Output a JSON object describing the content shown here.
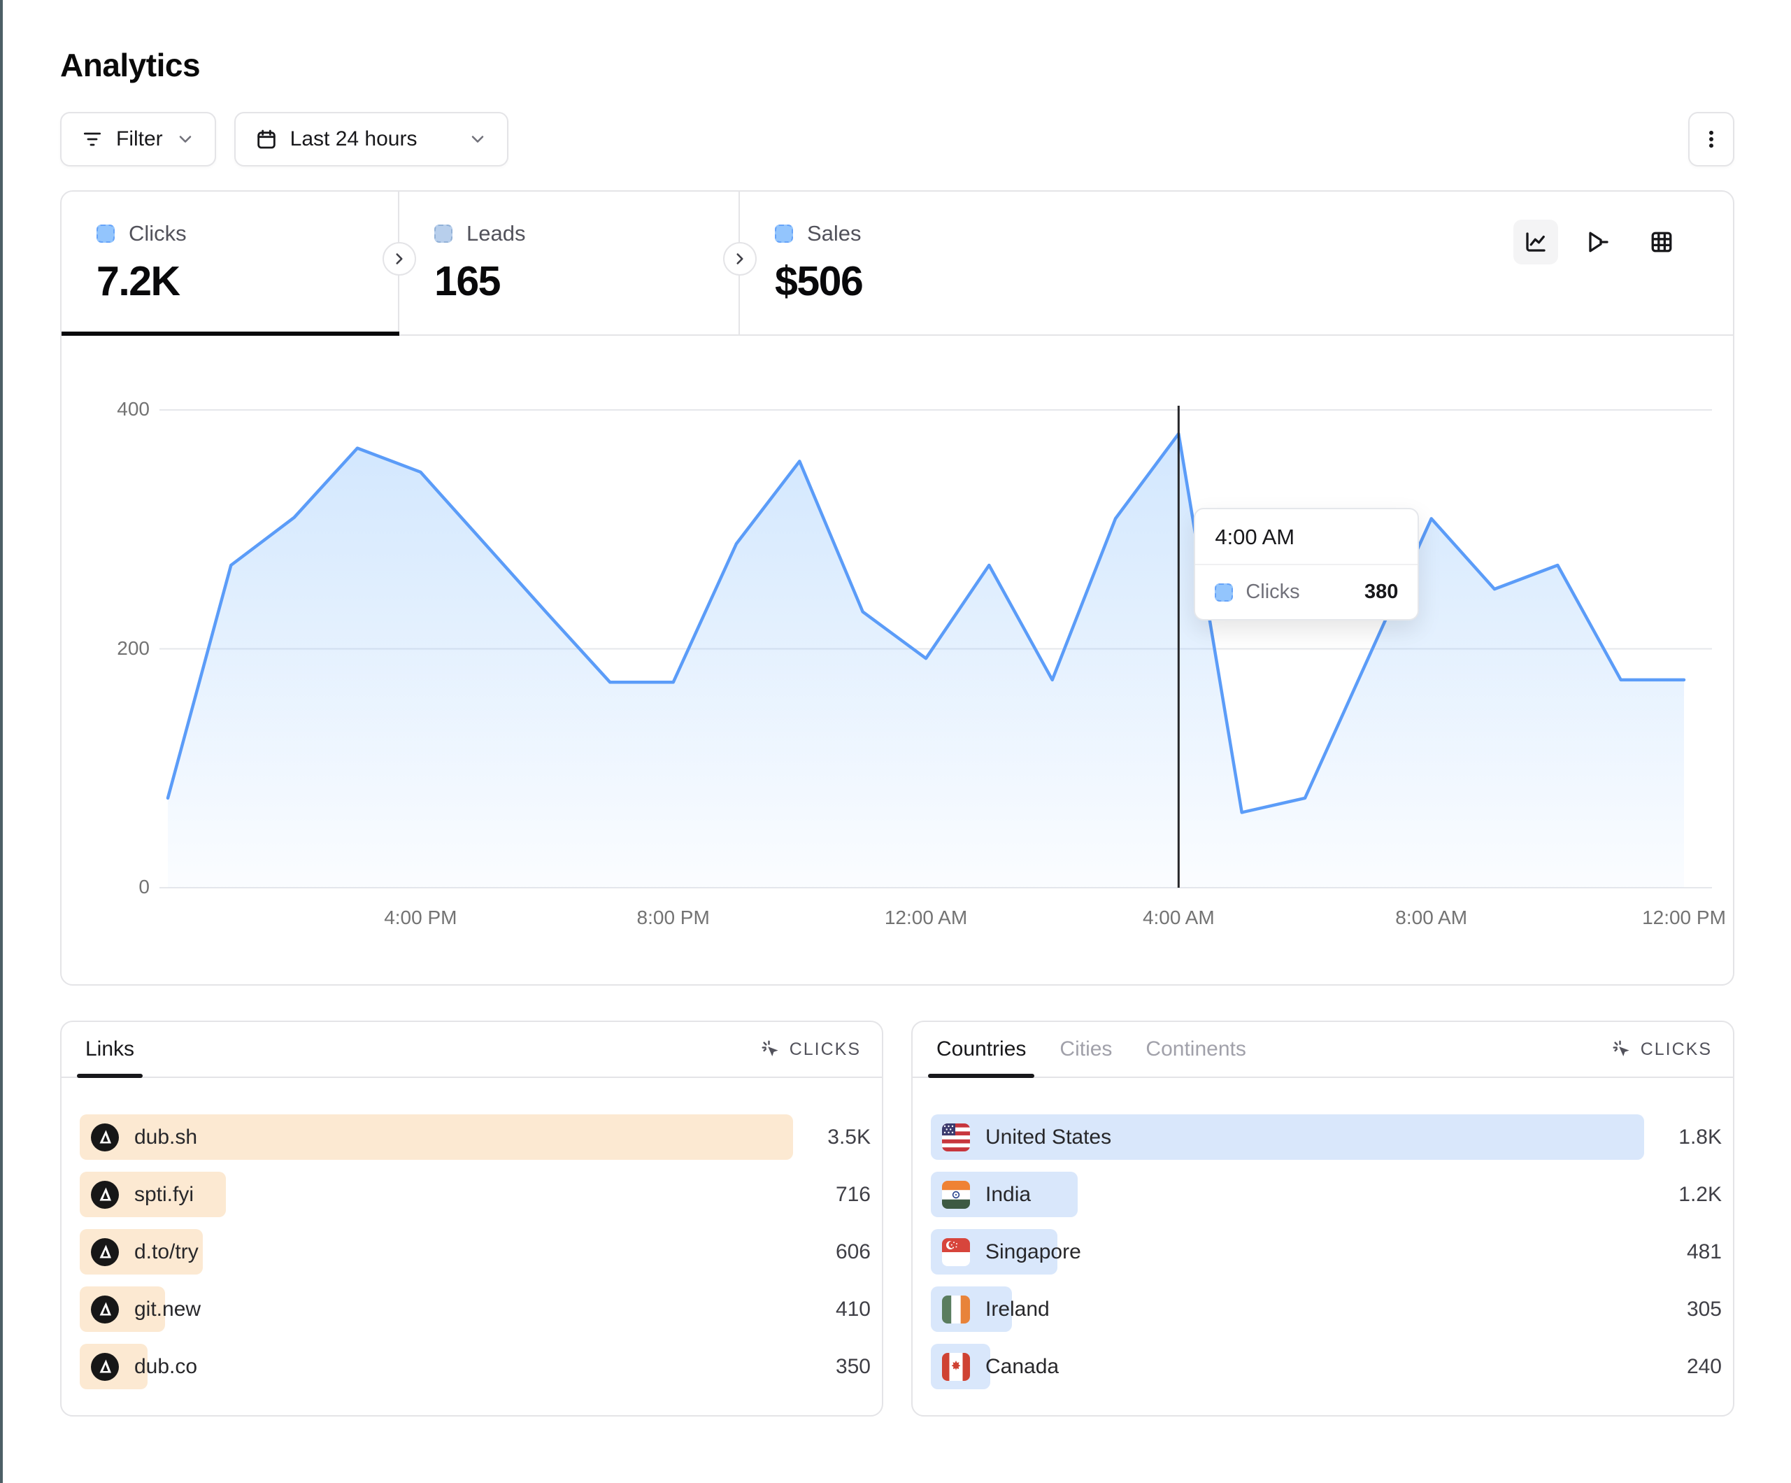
{
  "page": {
    "title": "Analytics"
  },
  "toolbar": {
    "filter_label": "Filter",
    "date_range": "Last 24 hours"
  },
  "stats": {
    "active_tab": "Clicks",
    "tabs": [
      {
        "label": "Clicks",
        "value": "7.2K"
      },
      {
        "label": "Leads",
        "value": "165"
      },
      {
        "label": "Sales",
        "value": "$506"
      }
    ]
  },
  "view_toggles": [
    {
      "icon": "line-chart-icon",
      "selected": true
    },
    {
      "icon": "funnel-icon",
      "selected": false
    },
    {
      "icon": "table-grid-icon",
      "selected": false
    }
  ],
  "chart_data": {
    "type": "area",
    "title": "Clicks over last 24 hours",
    "x": [
      "12:00 PM",
      "1:00 PM",
      "2:00 PM",
      "3:00 PM",
      "4:00 PM",
      "5:00 PM",
      "6:00 PM",
      "7:00 PM",
      "8:00 PM",
      "9:00 PM",
      "10:00 PM",
      "11:00 PM",
      "12:00 AM",
      "1:00 AM",
      "2:00 AM",
      "3:00 AM",
      "4:00 AM",
      "5:00 AM",
      "6:00 AM",
      "7:00 AM",
      "8:00 AM",
      "9:00 AM",
      "10:00 AM",
      "11:00 AM",
      "12:00 PM"
    ],
    "series": [
      {
        "name": "Clicks",
        "color": "#5b9cf8",
        "values": [
          75,
          270,
          310,
          368,
          348,
          289,
          230,
          172,
          172,
          288,
          357,
          231,
          192,
          270,
          174,
          309,
          380,
          63,
          75,
          192,
          309,
          250,
          270,
          174,
          174
        ]
      }
    ],
    "xticks": {
      "labels": [
        "4:00 PM",
        "8:00 PM",
        "12:00 AM",
        "4:00 AM",
        "8:00 AM",
        "12:00 PM"
      ],
      "indices": [
        4,
        8,
        12,
        16,
        20,
        24
      ]
    },
    "yticks": [
      0,
      200,
      400
    ],
    "ylim": [
      0,
      400
    ],
    "grid": "horizontal",
    "legend_position": "none",
    "tooltip": {
      "label": "4:00 AM",
      "series": "Clicks",
      "value": 380,
      "index": 16
    }
  },
  "links_panel": {
    "tabs": [
      "Links"
    ],
    "active_tab": "Links",
    "metric_label": "CLICKS",
    "rows": [
      {
        "label": "dub.sh",
        "value": "3.5K",
        "bar_pct": 100,
        "icon": "dub-logo"
      },
      {
        "label": "spti.fyi",
        "value": "716",
        "bar_pct": 20.5,
        "icon": "dub-logo"
      },
      {
        "label": "d.to/try",
        "value": "606",
        "bar_pct": 17.3,
        "icon": "dub-logo"
      },
      {
        "label": "git.new",
        "value": "410",
        "bar_pct": 12,
        "icon": "dub-logo"
      },
      {
        "label": "dub.co",
        "value": "350",
        "bar_pct": 9.5,
        "icon": "dub-logo"
      }
    ]
  },
  "countries_panel": {
    "tabs": [
      "Countries",
      "Cities",
      "Continents"
    ],
    "active_tab": "Countries",
    "metric_label": "CLICKS",
    "rows": [
      {
        "label": "United States",
        "value": "1.8K",
        "bar_pct": 100,
        "icon": "flag-us"
      },
      {
        "label": "India",
        "value": "1.2K",
        "bar_pct": 20.6,
        "icon": "flag-in"
      },
      {
        "label": "Singapore",
        "value": "481",
        "bar_pct": 17.7,
        "icon": "flag-sg"
      },
      {
        "label": "Ireland",
        "value": "305",
        "bar_pct": 11.4,
        "icon": "flag-ie"
      },
      {
        "label": "Canada",
        "value": "240",
        "bar_pct": 8.3,
        "icon": "flag-ca"
      }
    ]
  },
  "colors": {
    "accent_line": "#5b9cf8",
    "legend_square": "#93c5fd",
    "links_bar": "#fce9d2",
    "countries_bar": "#d9e7fb",
    "active_underline": "#18181b",
    "grid_line": "#e5e7eb",
    "crosshair": "#27272a"
  }
}
